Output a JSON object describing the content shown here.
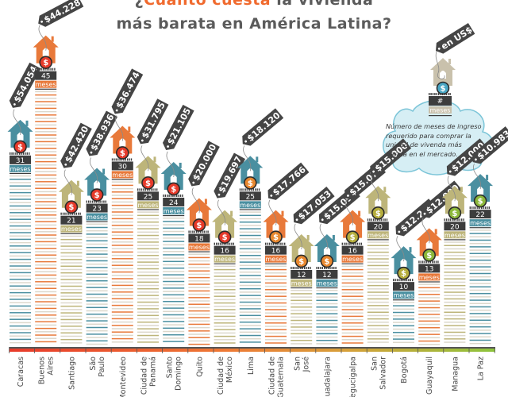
{
  "title": {
    "line1_prefix": "¿",
    "line1_highlight": "Cuánto cuesta",
    "line1_rest": " la vivienda",
    "line2": "más barata en América Latina?"
  },
  "legend": {
    "tag_label": "en US$",
    "count_label": "#",
    "unit_label": "meses",
    "description": "Número de meses de ingreso requerido para comprar la unidad de vivenda más barata en el mercado."
  },
  "colors": {
    "teal": "#4a8fa0",
    "orange": "#e8793a",
    "olive": "#bdb57a",
    "dark": "#3d3d3d",
    "tag": "#454545",
    "dollar_red": "#e63a2a",
    "dollar_orange": "#e8882f",
    "dollar_olive": "#b5ad3c",
    "dollar_green": "#8cb83a",
    "legend_house": "#c9c1ac",
    "legend_dollar": "#4aa7c4",
    "cloud_fill": "#d6eef4",
    "cloud_stroke": "#7cc5d8",
    "stripe_light": "#dcd8cc",
    "title_highlight": "#f06a2e",
    "title_text": "#5b5b5b"
  },
  "chart_data": {
    "type": "bar",
    "title": "¿Cuánto cuesta la vivienda más barata en América Latina?",
    "xlabel": "",
    "ylabel": "Meses de ingreso",
    "unit": "meses",
    "price_unit": "US$",
    "ylim": [
      0,
      50
    ],
    "grid": false,
    "legend_position": "top-right",
    "categories": [
      "Caracas",
      "Buenos Aires",
      "Santiago",
      "São Paulo",
      "Montevideo",
      "Ciudad de Panamá",
      "Santo Domingo",
      "Quito",
      "Ciudad de México",
      "Lima",
      "Ciudad de Guatemala",
      "San José",
      "Guadalajara",
      "Tegucigalpa",
      "San Salvador",
      "Bogotá",
      "Guayaquil",
      "Managua",
      "La Paz"
    ],
    "category_lines": [
      [
        "Caracas"
      ],
      [
        "Buenos",
        "Aires"
      ],
      [
        "Santiago"
      ],
      [
        "São",
        "Paulo"
      ],
      [
        "Montevideo"
      ],
      [
        "Ciudad de",
        "Panamá"
      ],
      [
        "Santo",
        "Domingo"
      ],
      [
        "Quito"
      ],
      [
        "Ciudad de",
        "México"
      ],
      [
        "Lima"
      ],
      [
        "Ciudad de",
        "Guatemala"
      ],
      [
        "San",
        "José"
      ],
      [
        "Guadalajara"
      ],
      [
        "Tegucigalpa"
      ],
      [
        "San",
        "Salvador"
      ],
      [
        "Bogotá"
      ],
      [
        "Guayaquil"
      ],
      [
        "Managua"
      ],
      [
        "La Paz"
      ]
    ],
    "series": [
      {
        "name": "Meses de ingreso",
        "values": [
          31,
          45,
          21,
          23,
          30,
          25,
          24,
          18,
          16,
          25,
          16,
          12,
          12,
          16,
          20,
          10,
          13,
          20,
          22
        ]
      },
      {
        "name": "Precio (US$)",
        "values": [
          54054,
          44228,
          42420,
          38936,
          36474,
          31795,
          21105,
          20000,
          19697,
          18120,
          17766,
          17053,
          15095,
          15073,
          15000,
          12290,
          12000,
          12000,
          10983
        ]
      }
    ],
    "price_labels": [
      "$54.054",
      "$44.228",
      "$42.420",
      "$38.936",
      "$36.474",
      "$31.795",
      "$21.105",
      "$20.000",
      "$19.697",
      "$18.120",
      "$17.766",
      "$17.053",
      "$15.095",
      "$15.073",
      "$15.000",
      "$12.290",
      "$12.000",
      "$12.000",
      "$10.983"
    ],
    "house_colors": [
      "teal",
      "orange",
      "olive",
      "teal",
      "orange",
      "olive",
      "teal",
      "orange",
      "olive",
      "teal",
      "orange",
      "olive",
      "teal",
      "orange",
      "olive",
      "teal",
      "orange",
      "olive",
      "teal"
    ],
    "dollar_colors": [
      "dollar_red",
      "dollar_red",
      "dollar_red",
      "dollar_red",
      "dollar_red",
      "dollar_red",
      "dollar_red",
      "dollar_red",
      "dollar_red",
      "dollar_orange",
      "dollar_orange",
      "dollar_orange",
      "dollar_orange",
      "dollar_olive",
      "dollar_olive",
      "dollar_olive",
      "dollar_green",
      "dollar_green",
      "dollar_green"
    ]
  }
}
